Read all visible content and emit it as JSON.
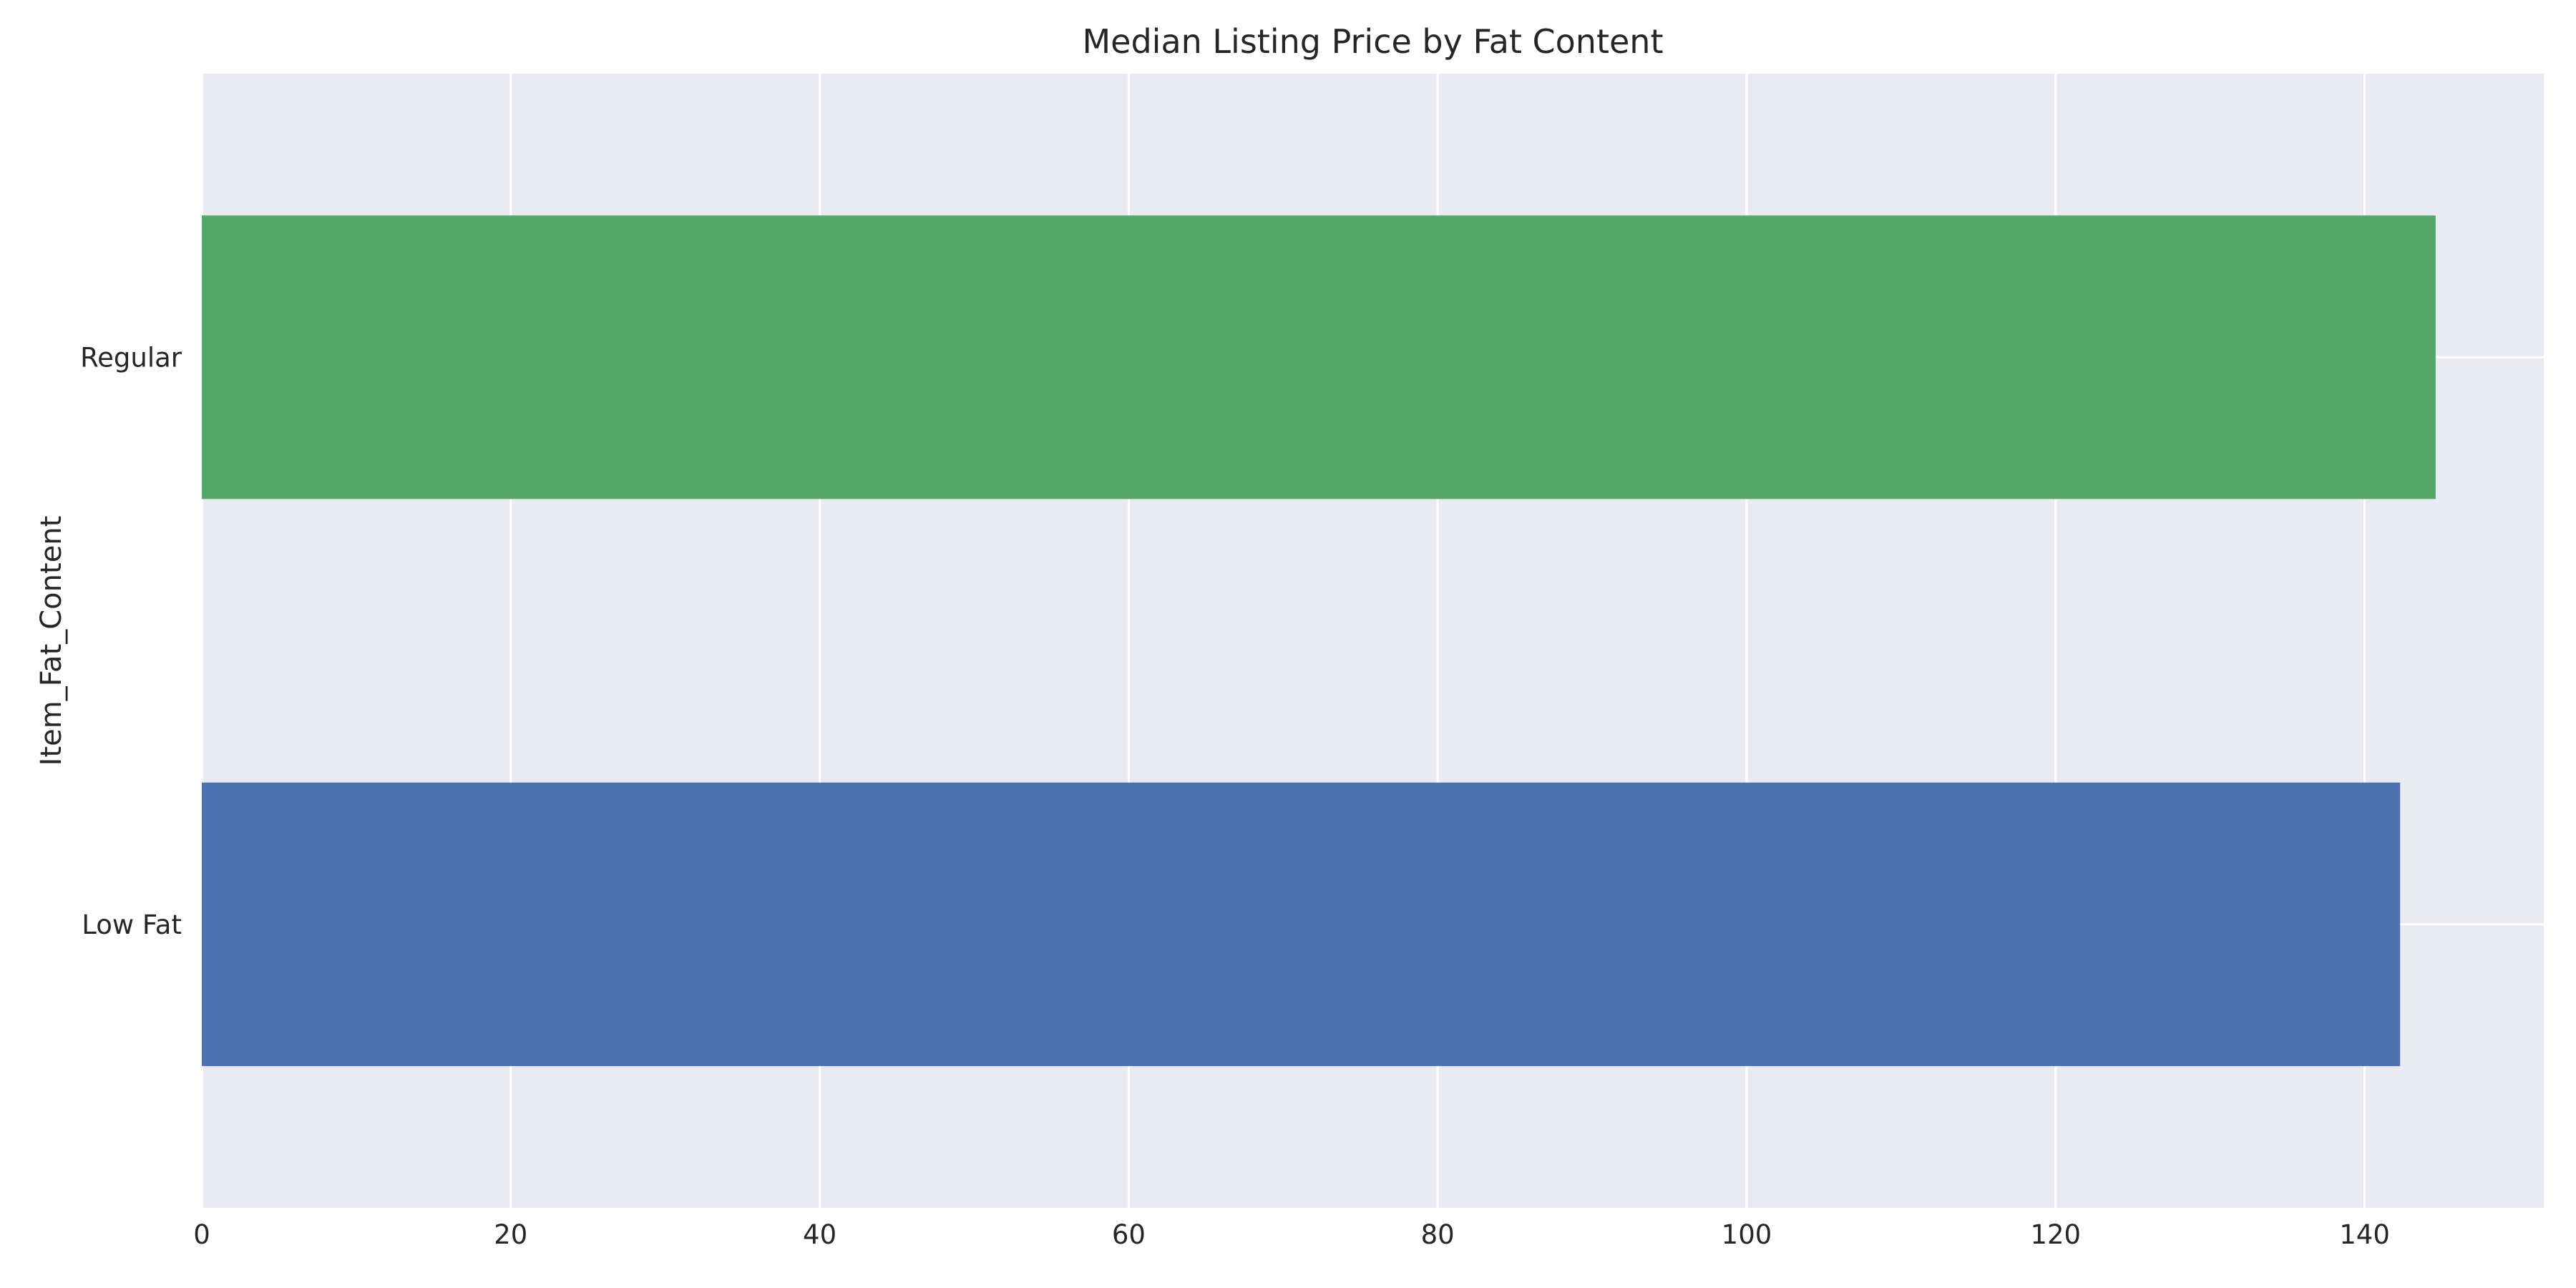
{
  "chart_data": {
    "type": "bar",
    "orientation": "horizontal",
    "title": "Median Listing Price by Fat Content",
    "xlabel": "",
    "ylabel": "Item_Fat_Content",
    "categories": [
      "Low Fat",
      "Regular"
    ],
    "values": [
      142.3,
      144.6
    ],
    "bar_colors": [
      "#4c72b0",
      "#55a868"
    ],
    "xlim": [
      0,
      151.6
    ],
    "xticks": [
      0,
      20,
      40,
      60,
      80,
      100,
      120,
      140
    ],
    "grid": true,
    "legend": "none",
    "background_color": "#eaeaf2",
    "grid_color": "#ffffff"
  }
}
